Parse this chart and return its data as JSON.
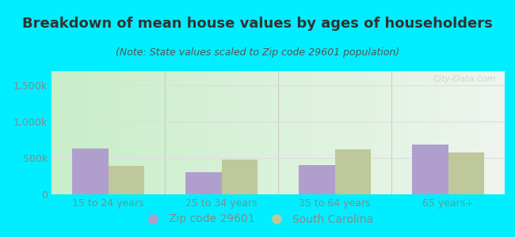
{
  "title": "Breakdown of mean house values by ages of householders",
  "subtitle": "(Note: State values scaled to Zip code 29601 population)",
  "categories": [
    "15 to 24 years",
    "25 to 34 years",
    "35 to 64 years",
    "65 years+"
  ],
  "zip_values": [
    630000,
    310000,
    400000,
    690000
  ],
  "state_values": [
    390000,
    480000,
    620000,
    580000
  ],
  "zip_color": "#b09fcc",
  "state_color": "#bec89a",
  "background_outer": "#00eeff",
  "grad_left_color": "#c8eec8",
  "grad_right_color": "#eef5ee",
  "ylim": [
    0,
    1700000
  ],
  "yticks": [
    0,
    500000,
    1000000,
    1500000
  ],
  "ytick_labels": [
    "0",
    "500k",
    "1,000k",
    "1,500k"
  ],
  "legend_zip_label": "Zip code 29601",
  "legend_state_label": "South Carolina",
  "watermark": "City-Data.com",
  "title_fontsize": 13,
  "subtitle_fontsize": 9,
  "tick_fontsize": 9,
  "legend_fontsize": 10,
  "title_color": "#333333",
  "subtitle_color": "#555555",
  "tick_color": "#888888",
  "grid_color": "#dddddd",
  "separator_color": "#cccccc"
}
